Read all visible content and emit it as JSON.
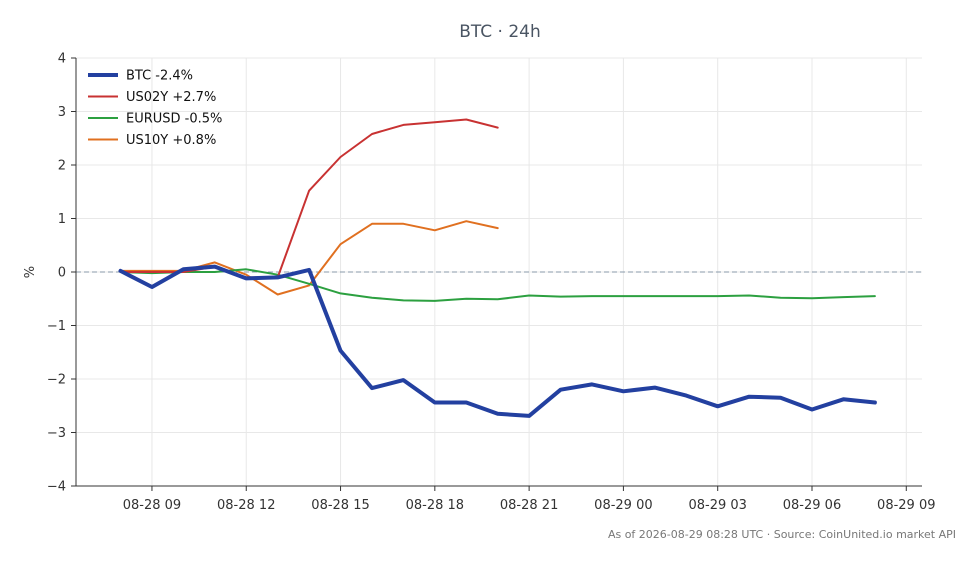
{
  "chart_data": {
    "type": "line",
    "title": "BTC · 24h",
    "ylabel": "%",
    "xlabel": "",
    "ylim": [
      -4,
      4
    ],
    "yticks": [
      "−4",
      "−3",
      "−2",
      "−1",
      "0",
      "1",
      "2",
      "3",
      "4"
    ],
    "yticks_values": [
      -4,
      -3,
      -2,
      -1,
      0,
      1,
      2,
      3,
      4
    ],
    "xlim": [
      "2026-08-28 06:35",
      "2026-08-29 09:30"
    ],
    "xticks": [
      {
        "t": "2026-08-28 09:00",
        "label": "08-28 09"
      },
      {
        "t": "2026-08-28 12:00",
        "label": "08-28 12"
      },
      {
        "t": "2026-08-28 15:00",
        "label": "08-28 15"
      },
      {
        "t": "2026-08-28 18:00",
        "label": "08-28 18"
      },
      {
        "t": "2026-08-28 21:00",
        "label": "08-28 21"
      },
      {
        "t": "2026-08-29 00:00",
        "label": "08-29 00"
      },
      {
        "t": "2026-08-29 03:00",
        "label": "08-29 03"
      },
      {
        "t": "2026-08-29 06:00",
        "label": "08-29 06"
      },
      {
        "t": "2026-08-29 09:00",
        "label": "08-29 09"
      }
    ],
    "grid": true,
    "zero_line": true,
    "legend_position": "top-left",
    "series": [
      {
        "name": "BTC -2.4%",
        "color": "#2340a0",
        "width": 4,
        "x": [
          "2026-08-28 08:00",
          "2026-08-28 09:00",
          "2026-08-28 10:00",
          "2026-08-28 11:00",
          "2026-08-28 12:00",
          "2026-08-28 13:00",
          "2026-08-28 14:00",
          "2026-08-28 15:00",
          "2026-08-28 16:00",
          "2026-08-28 17:00",
          "2026-08-28 18:00",
          "2026-08-28 19:00",
          "2026-08-28 20:00",
          "2026-08-28 21:00",
          "2026-08-28 22:00",
          "2026-08-28 23:00",
          "2026-08-29 00:00",
          "2026-08-29 01:00",
          "2026-08-29 02:00",
          "2026-08-29 03:00",
          "2026-08-29 04:00",
          "2026-08-29 05:00",
          "2026-08-29 06:00",
          "2026-08-29 07:00",
          "2026-08-29 08:00"
        ],
        "y": [
          0.02,
          -0.28,
          0.05,
          0.1,
          -0.12,
          -0.1,
          0.04,
          -1.47,
          -2.17,
          -2.02,
          -2.44,
          -2.44,
          -2.65,
          -2.69,
          -2.2,
          -2.1,
          -2.23,
          -2.16,
          -2.31,
          -2.51,
          -2.33,
          -2.35,
          -2.57,
          -2.38,
          -2.44
        ]
      },
      {
        "name": "US02Y +2.7%",
        "color": "#c83232",
        "width": 2,
        "x": [
          "2026-08-28 08:00",
          "2026-08-28 09:00",
          "2026-08-28 10:00",
          "2026-08-28 11:00",
          "2026-08-28 12:00",
          "2026-08-28 13:00",
          "2026-08-28 14:00",
          "2026-08-28 15:00",
          "2026-08-28 16:00",
          "2026-08-28 17:00",
          "2026-08-28 18:00",
          "2026-08-28 19:00",
          "2026-08-28 20:00"
        ],
        "y": [
          0.0,
          0.0,
          0.0,
          0.1,
          -0.1,
          -0.1,
          1.52,
          2.15,
          2.58,
          2.75,
          2.8,
          2.85,
          2.7
        ]
      },
      {
        "name": "EURUSD -0.5%",
        "color": "#2ca040",
        "width": 2,
        "x": [
          "2026-08-28 08:00",
          "2026-08-28 09:00",
          "2026-08-28 10:00",
          "2026-08-28 11:00",
          "2026-08-28 12:00",
          "2026-08-28 13:00",
          "2026-08-28 14:00",
          "2026-08-28 15:00",
          "2026-08-28 16:00",
          "2026-08-28 17:00",
          "2026-08-28 18:00",
          "2026-08-28 19:00",
          "2026-08-28 20:00",
          "2026-08-28 21:00",
          "2026-08-28 22:00",
          "2026-08-28 23:00",
          "2026-08-29 00:00",
          "2026-08-29 01:00",
          "2026-08-29 02:00",
          "2026-08-29 03:00",
          "2026-08-29 04:00",
          "2026-08-29 05:00",
          "2026-08-29 06:00",
          "2026-08-29 07:00",
          "2026-08-29 08:00"
        ],
        "y": [
          0.0,
          -0.02,
          0.0,
          0.0,
          0.05,
          -0.05,
          -0.22,
          -0.4,
          -0.48,
          -0.53,
          -0.54,
          -0.5,
          -0.51,
          -0.44,
          -0.46,
          -0.45,
          -0.45,
          -0.45,
          -0.45,
          -0.45,
          -0.44,
          -0.48,
          -0.49,
          -0.47,
          -0.45
        ]
      },
      {
        "name": "US10Y +0.8%",
        "color": "#e07020",
        "width": 2,
        "x": [
          "2026-08-28 08:00",
          "2026-08-28 09:00",
          "2026-08-28 10:00",
          "2026-08-28 11:00",
          "2026-08-28 12:00",
          "2026-08-28 13:00",
          "2026-08-28 14:00",
          "2026-08-28 15:00",
          "2026-08-28 16:00",
          "2026-08-28 17:00",
          "2026-08-28 18:00",
          "2026-08-28 19:00",
          "2026-08-28 20:00"
        ],
        "y": [
          0.02,
          0.02,
          0.02,
          0.18,
          -0.05,
          -0.42,
          -0.25,
          0.52,
          0.9,
          0.9,
          0.78,
          0.95,
          0.82
        ]
      }
    ],
    "footer": "As of 2026-08-29 08:28 UTC · Source: CoinUnited.io market API",
    "colors": {
      "axis": "#333333",
      "grid": "#e8e8e8",
      "zero_line": "#8899aa",
      "title": "#4a5563",
      "footer": "#777777"
    }
  }
}
